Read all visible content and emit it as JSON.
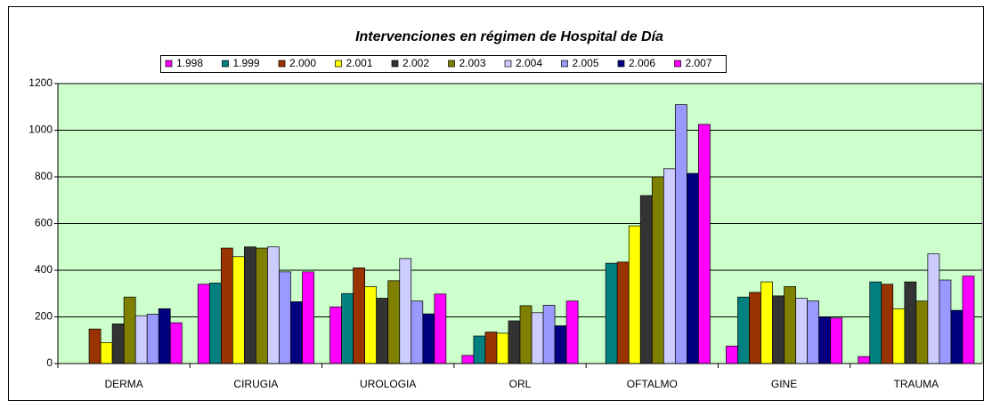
{
  "chart_data": {
    "type": "bar",
    "title": "Intervenciones en régimen de Hospital de Día",
    "categories": [
      "DERMA",
      "CIRUGIA",
      "UROLOGIA",
      "ORL",
      "OFTALMO",
      "GINE",
      "TRAUMA"
    ],
    "series": [
      {
        "name": "1.998",
        "color": "#ff00ff",
        "values": [
          0,
          340,
          243,
          35,
          0,
          75,
          30
        ]
      },
      {
        "name": "1.999",
        "color": "#008080",
        "values": [
          0,
          345,
          300,
          118,
          430,
          285,
          350
        ]
      },
      {
        "name": "2.000",
        "color": "#993300",
        "values": [
          148,
          495,
          410,
          135,
          435,
          305,
          340
        ]
      },
      {
        "name": "2.001",
        "color": "#ffff00",
        "values": [
          90,
          458,
          330,
          130,
          590,
          350,
          235
        ]
      },
      {
        "name": "2.002",
        "color": "#333333",
        "values": [
          170,
          500,
          280,
          183,
          720,
          290,
          350
        ]
      },
      {
        "name": "2.003",
        "color": "#808000",
        "values": [
          285,
          495,
          355,
          248,
          800,
          330,
          268
        ]
      },
      {
        "name": "2.004",
        "color": "#ccccff",
        "values": [
          205,
          500,
          450,
          218,
          835,
          280,
          470
        ]
      },
      {
        "name": "2.005",
        "color": "#9999ff",
        "values": [
          212,
          393,
          268,
          250,
          1110,
          268,
          358
        ]
      },
      {
        "name": "2.006",
        "color": "#000080",
        "values": [
          235,
          265,
          213,
          162,
          815,
          200,
          228
        ]
      },
      {
        "name": "2.007",
        "color": "#ff00ff",
        "values": [
          175,
          393,
          298,
          268,
          1025,
          195,
          375
        ]
      }
    ],
    "ylim": [
      0,
      1200
    ],
    "yticks": [
      0,
      200,
      400,
      600,
      800,
      1000,
      1200
    ],
    "grid": true,
    "legend": "top",
    "plot_background": "#ccffcc"
  }
}
